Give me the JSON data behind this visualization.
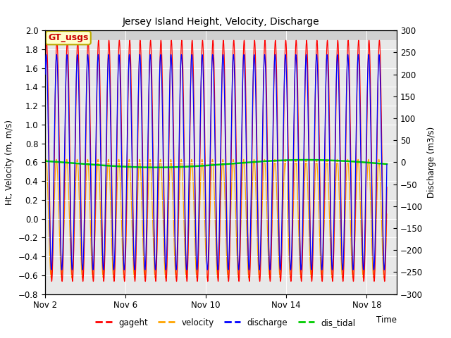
{
  "title": "Jersey Island Height, Velocity, Discharge",
  "xlabel": "Time",
  "ylabel_left": "Ht, Velocity (m, m/s)",
  "ylabel_right": "Discharge (m3/s)",
  "ylim_left": [
    -0.8,
    2.0
  ],
  "ylim_right": [
    -300,
    300
  ],
  "xtick_labels": [
    "Nov 2",
    "Nov 6",
    "Nov 10",
    "Nov 14",
    "Nov 18"
  ],
  "xtick_positions": [
    2,
    6,
    10,
    14,
    18
  ],
  "legend_labels": [
    "gageht",
    "velocity",
    "discharge",
    "dis_tidal"
  ],
  "colors": {
    "gageht": "#ff0000",
    "velocity": "#ffa500",
    "discharge": "#0000ff",
    "dis_tidal": "#00cc00"
  },
  "gt_usgs_label": "GT_usgs",
  "gt_usgs_color": "#cc0000",
  "gt_usgs_bg": "#ffffcc",
  "gt_usgs_border": "#bbaa00",
  "background_plot": "#e8e8e8",
  "background_upper_color": "#d0d0d0",
  "n_days": 19,
  "tidal_period_hours": 12.42,
  "gageht_mean": 0.615,
  "gageht_amplitude": 1.28,
  "velocity_amplitude": 0.63,
  "velocity_mean": 0.0,
  "discharge_scale": 245,
  "dis_tidal_mean": 0.585,
  "dis_tidal_amplitude": 0.04,
  "dis_tidal_period_days": 15.0
}
